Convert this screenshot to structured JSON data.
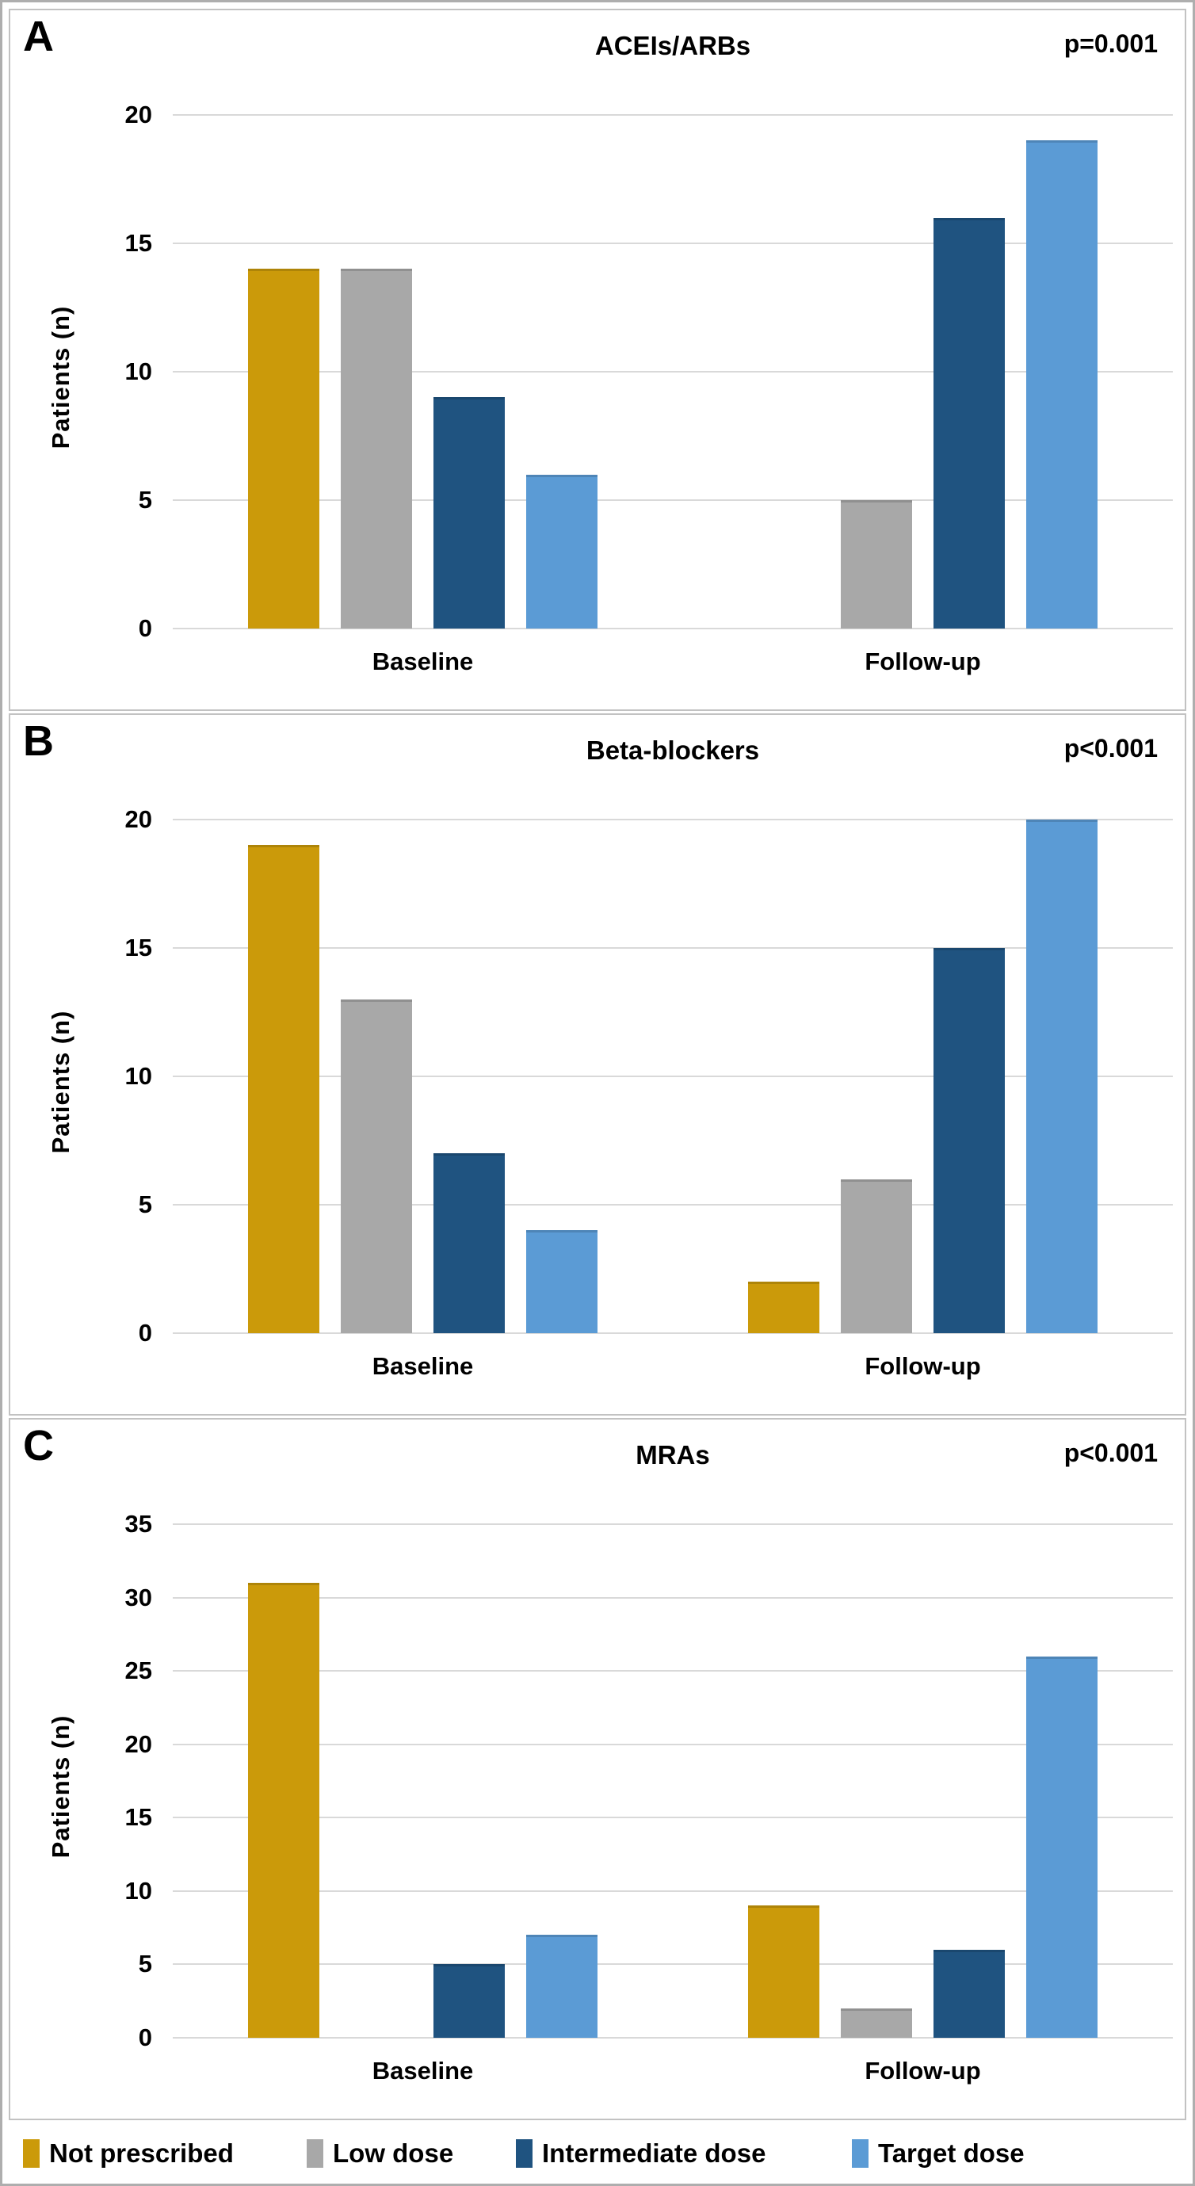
{
  "figure": {
    "ylabel": "Patients (n)",
    "categories": [
      "Baseline",
      "Follow-up"
    ],
    "colors": {
      "not_prescribed": "#CB9A0A",
      "low_dose": "#A8A8A8",
      "intermediate_dose": "#1F5380",
      "target_dose": "#5B9BD5",
      "gridline": "#D9D9D9"
    },
    "legend": [
      {
        "label": "Not prescribed",
        "color": "#CB9A0A"
      },
      {
        "label": "Low dose",
        "color": "#A8A8A8"
      },
      {
        "label": "Intermediate dose",
        "color": "#1F5380"
      },
      {
        "label": "Target dose",
        "color": "#5B9BD5"
      }
    ]
  },
  "chart_data": [
    {
      "type": "bar",
      "panel": "A",
      "title": "ACEIs/ARBs",
      "p_value": "p=0.001",
      "ylabel": "Patients (n)",
      "xlabel": "",
      "categories": [
        "Baseline",
        "Follow-up"
      ],
      "series": [
        {
          "name": "Not prescribed",
          "values": [
            14,
            0
          ]
        },
        {
          "name": "Low dose",
          "values": [
            14,
            5
          ]
        },
        {
          "name": "Intermediate dose",
          "values": [
            9,
            16
          ]
        },
        {
          "name": "Target dose",
          "values": [
            6,
            19
          ]
        }
      ],
      "ylim": [
        0,
        20
      ],
      "ytick_step": 5,
      "yticks": [
        0,
        5,
        10,
        15,
        20
      ],
      "grid": true,
      "legend_position": "bottom-shared"
    },
    {
      "type": "bar",
      "panel": "B",
      "title": "Beta-blockers",
      "p_value": "p<0.001",
      "ylabel": "Patients (n)",
      "xlabel": "",
      "categories": [
        "Baseline",
        "Follow-up"
      ],
      "series": [
        {
          "name": "Not prescribed",
          "values": [
            19,
            2
          ]
        },
        {
          "name": "Low dose",
          "values": [
            13,
            6
          ]
        },
        {
          "name": "Intermediate dose",
          "values": [
            7,
            15
          ]
        },
        {
          "name": "Target dose",
          "values": [
            4,
            20
          ]
        }
      ],
      "ylim": [
        0,
        20
      ],
      "ytick_step": 5,
      "yticks": [
        0,
        5,
        10,
        15,
        20
      ],
      "grid": true,
      "legend_position": "bottom-shared"
    },
    {
      "type": "bar",
      "panel": "C",
      "title": "MRAs",
      "p_value": "p<0.001",
      "ylabel": "Patients (n)",
      "xlabel": "",
      "categories": [
        "Baseline",
        "Follow-up"
      ],
      "series": [
        {
          "name": "Not prescribed",
          "values": [
            31,
            9
          ]
        },
        {
          "name": "Low dose",
          "values": [
            0,
            2
          ]
        },
        {
          "name": "Intermediate dose",
          "values": [
            5,
            6
          ]
        },
        {
          "name": "Target dose",
          "values": [
            7,
            26
          ]
        }
      ],
      "ylim": [
        0,
        35
      ],
      "ytick_step": 5,
      "yticks": [
        0,
        5,
        10,
        15,
        20,
        25,
        30,
        35
      ],
      "grid": true,
      "legend_position": "bottom-shared"
    }
  ]
}
